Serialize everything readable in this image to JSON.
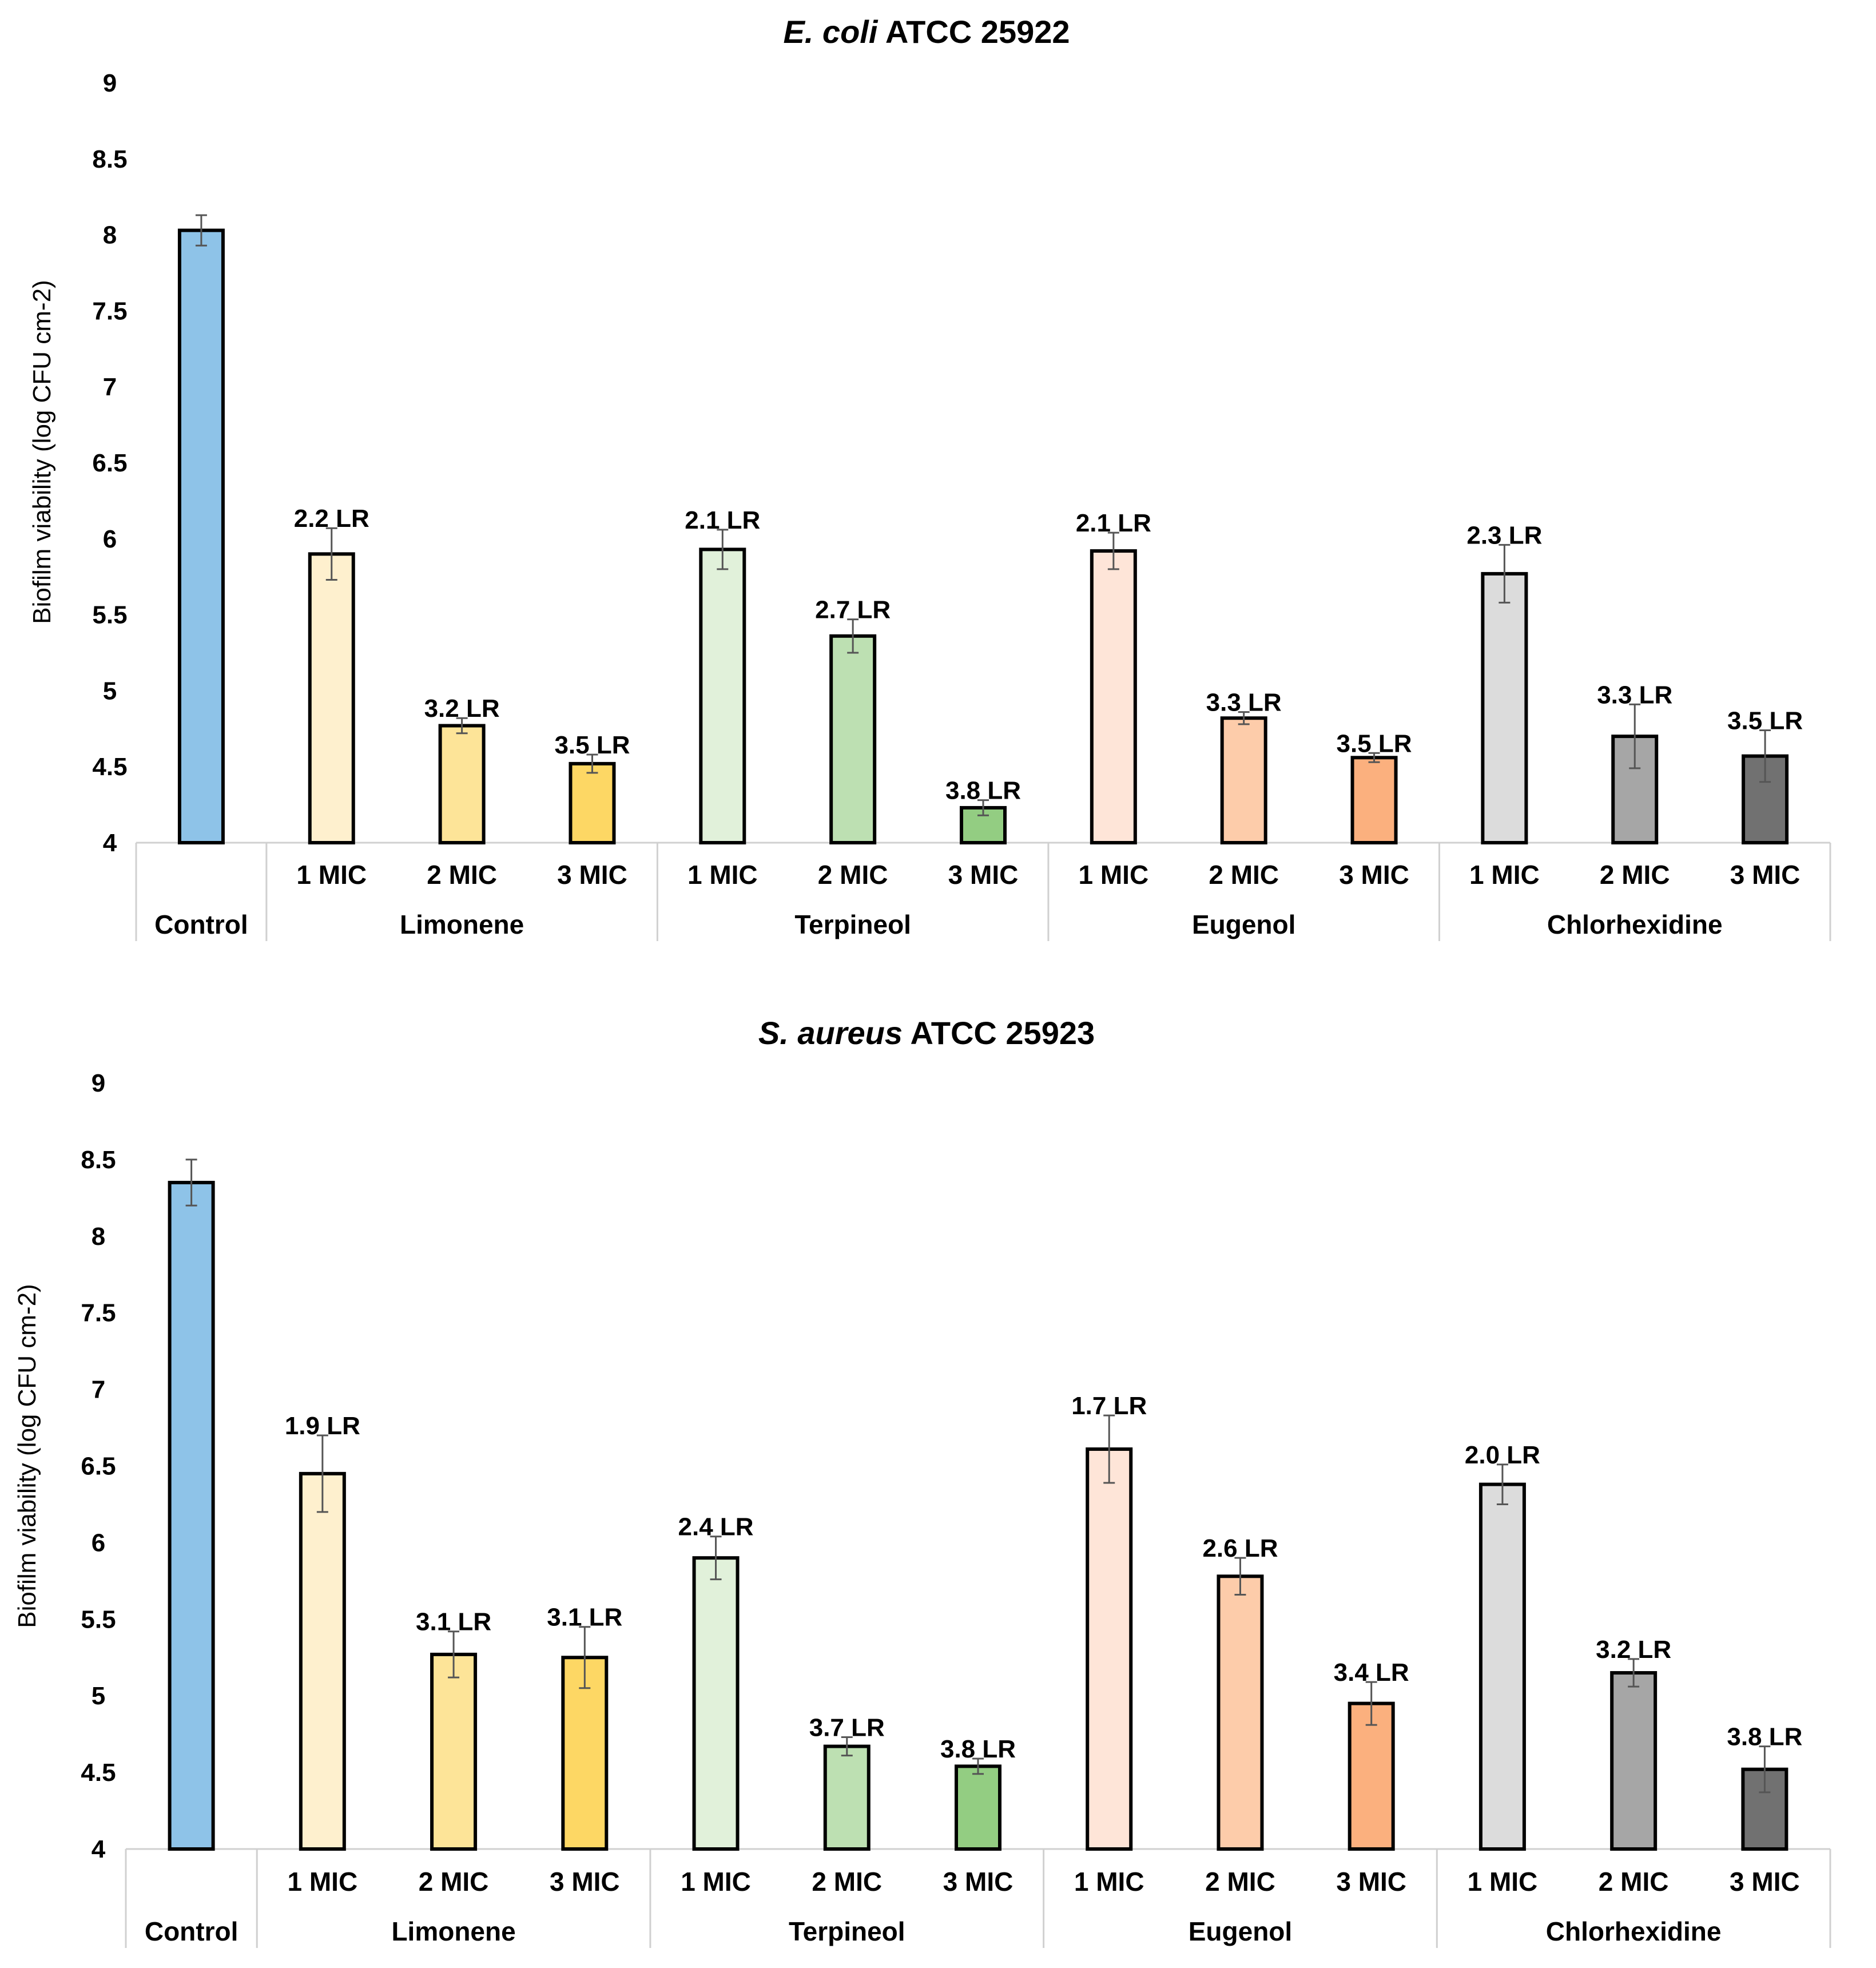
{
  "chart_data": [
    {
      "type": "bar",
      "title_italic": "E. coli",
      "title_rest": " ATCC 25922",
      "ylabel": "Biofilm viability (log CFU cm-2)",
      "ylim": [
        4,
        9
      ],
      "yticks": [
        "4",
        "4.5",
        "5",
        "5.5",
        "6",
        "6.5",
        "7",
        "7.5",
        "8",
        "8.5",
        "9"
      ],
      "groups": [
        {
          "name": "Control",
          "count": 1
        },
        {
          "name": "Limonene",
          "count": 3
        },
        {
          "name": "Terpineol",
          "count": 3
        },
        {
          "name": "Eugenol",
          "count": 3
        },
        {
          "name": "Chlorhexidine",
          "count": 3
        }
      ],
      "bars": [
        {
          "sublabel": "",
          "value": 8.03,
          "error": 0.1,
          "color": "#8EC3E8",
          "label": ""
        },
        {
          "sublabel": "1 MIC",
          "value": 5.9,
          "error": 0.17,
          "color": "#FEF0CE",
          "label": "2.2 LR"
        },
        {
          "sublabel": "2 MIC",
          "value": 4.77,
          "error": 0.05,
          "color": "#FDE498",
          "label": "3.2 LR"
        },
        {
          "sublabel": "3 MIC",
          "value": 4.52,
          "error": 0.06,
          "color": "#FDD764",
          "label": "3.5 LR"
        },
        {
          "sublabel": "1 MIC",
          "value": 5.93,
          "error": 0.13,
          "color": "#E1F1DA",
          "label": "2.1 LR"
        },
        {
          "sublabel": "2 MIC",
          "value": 5.36,
          "error": 0.11,
          "color": "#BDE0B2",
          "label": "2.7 LR"
        },
        {
          "sublabel": "3 MIC",
          "value": 4.23,
          "error": 0.05,
          "color": "#93CD82",
          "label": "3.8 LR"
        },
        {
          "sublabel": "1 MIC",
          "value": 5.92,
          "error": 0.12,
          "color": "#FEE5D8",
          "label": "2.1 LR"
        },
        {
          "sublabel": "2 MIC",
          "value": 4.82,
          "error": 0.04,
          "color": "#FDCCAA",
          "label": "3.3 LR"
        },
        {
          "sublabel": "3 MIC",
          "value": 4.56,
          "error": 0.03,
          "color": "#FBB07E",
          "label": "3.5 LR"
        },
        {
          "sublabel": "1 MIC",
          "value": 5.77,
          "error": 0.19,
          "color": "#DCDCDC",
          "label": "2.3 LR"
        },
        {
          "sublabel": "2 MIC",
          "value": 4.7,
          "error": 0.21,
          "color": "#A6A6A6",
          "label": "3.3 LR"
        },
        {
          "sublabel": "3 MIC",
          "value": 4.57,
          "error": 0.17,
          "color": "#717171",
          "label": "3.5 LR"
        }
      ]
    },
    {
      "type": "bar",
      "title_italic": "S. aureus",
      "title_rest": " ATCC 25923",
      "ylabel": "Biofilm viability (log CFU cm-2)",
      "ylim": [
        4,
        9
      ],
      "yticks": [
        "4",
        "4.5",
        "5",
        "5.5",
        "6",
        "6.5",
        "7",
        "7.5",
        "8",
        "8.5",
        "9"
      ],
      "groups": [
        {
          "name": "Control",
          "count": 1
        },
        {
          "name": "Limonene",
          "count": 3
        },
        {
          "name": "Terpineol",
          "count": 3
        },
        {
          "name": "Eugenol",
          "count": 3
        },
        {
          "name": "Chlorhexidine",
          "count": 3
        }
      ],
      "bars": [
        {
          "sublabel": "",
          "value": 8.35,
          "error": 0.15,
          "color": "#8EC3E8",
          "label": ""
        },
        {
          "sublabel": "1 MIC",
          "value": 6.45,
          "error": 0.25,
          "color": "#FEF0CE",
          "label": "1.9 LR"
        },
        {
          "sublabel": "2 MIC",
          "value": 5.27,
          "error": 0.15,
          "color": "#FDE498",
          "label": "3.1 LR"
        },
        {
          "sublabel": "3 MIC",
          "value": 5.25,
          "error": 0.2,
          "color": "#FDD764",
          "label": "3.1 LR"
        },
        {
          "sublabel": "1 MIC",
          "value": 5.9,
          "error": 0.14,
          "color": "#E1F1DA",
          "label": "2.4 LR"
        },
        {
          "sublabel": "2 MIC",
          "value": 4.67,
          "error": 0.06,
          "color": "#BDE0B2",
          "label": "3.7 LR"
        },
        {
          "sublabel": "3 MIC",
          "value": 4.54,
          "error": 0.05,
          "color": "#93CD82",
          "label": "3.8 LR"
        },
        {
          "sublabel": "1 MIC",
          "value": 6.61,
          "error": 0.22,
          "color": "#FEE5D8",
          "label": "1.7 LR"
        },
        {
          "sublabel": "2 MIC",
          "value": 5.78,
          "error": 0.12,
          "color": "#FDCCAA",
          "label": "2.6 LR"
        },
        {
          "sublabel": "3 MIC",
          "value": 4.95,
          "error": 0.14,
          "color": "#FBB07E",
          "label": "3.4 LR"
        },
        {
          "sublabel": "1 MIC",
          "value": 6.38,
          "error": 0.13,
          "color": "#DCDCDC",
          "label": "2.0 LR"
        },
        {
          "sublabel": "2 MIC",
          "value": 5.15,
          "error": 0.09,
          "color": "#A6A6A6",
          "label": "3.2 LR"
        },
        {
          "sublabel": "3 MIC",
          "value": 4.52,
          "error": 0.15,
          "color": "#717171",
          "label": "3.8 LR"
        }
      ]
    }
  ]
}
